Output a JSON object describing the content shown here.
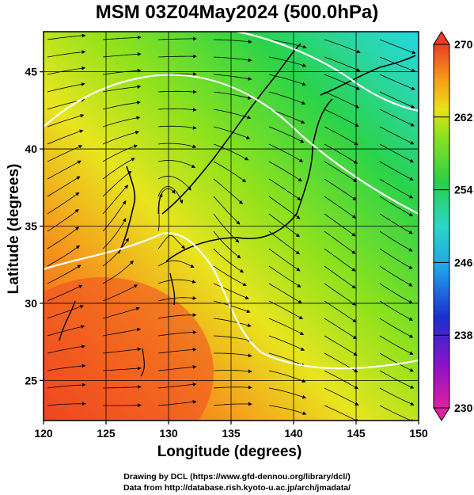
{
  "title": "MSM 03Z04May2024 (500.0hPa)",
  "xlabel": "Longitude (degrees)",
  "ylabel": "Latitude  (degrees)",
  "credits": [
    "Drawing by DCL (https://www.gfd-dennou.org/library/dcl/)",
    "Data from http://database.rish.kyoto-u.ac.jp/arch/jmadata/"
  ],
  "map": {
    "lon_range": [
      120,
      150
    ],
    "lat_range": [
      22.4,
      47.6
    ],
    "lon_ticks": [
      "120",
      "125",
      "130",
      "135",
      "140",
      "145",
      "150"
    ],
    "lat_ticks": [
      "25",
      "30",
      "35",
      "40",
      "45"
    ],
    "field": "temperature",
    "overlay": "streamlines",
    "contour_color": "#ffffff"
  },
  "colorbar": {
    "min": 230,
    "max": 270,
    "labels": [
      "270",
      "262",
      "254",
      "246",
      "238",
      "230"
    ],
    "colors": [
      "#e8207a",
      "#8a12c8",
      "#1a2fd0",
      "#1fa0e8",
      "#2ad7c8",
      "#28d04a",
      "#8fe21c",
      "#e8e21a",
      "#f7a018",
      "#f06018",
      "#ec3c24"
    ]
  }
}
